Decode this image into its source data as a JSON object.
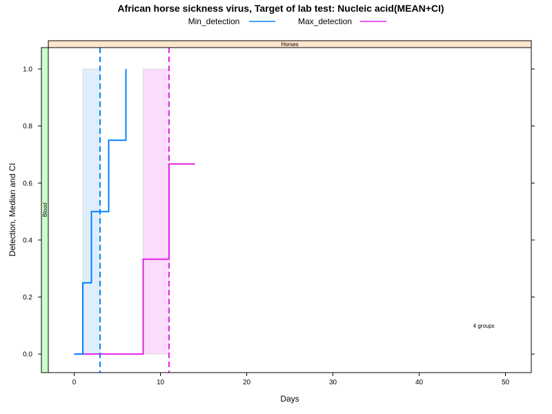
{
  "chart_data": {
    "type": "line",
    "title": "African horse sickness virus, Target of lab test: Nucleic acid(MEAN+CI)",
    "xlabel": "Days",
    "ylabel": "Detection, Median and CI",
    "xlim": [
      -3,
      53
    ],
    "ylim": [
      -0.065,
      1.075
    ],
    "xticks": [
      0,
      10,
      20,
      30,
      40,
      50
    ],
    "yticks": [
      0.0,
      0.2,
      0.4,
      0.6,
      0.8,
      1.0
    ],
    "xtick_labels": [
      "0",
      "10",
      "20",
      "30",
      "40",
      "50"
    ],
    "ytick_labels": [
      "0.0",
      "0.2",
      "0.4",
      "0.6",
      "0.8",
      "1.0"
    ],
    "grid": false,
    "legend_position": "top",
    "strip_top": "Horses",
    "strip_left": "Blood",
    "annotation": "4 groups",
    "annotation_pos": {
      "x": 47.5,
      "y": 0.1
    },
    "series": [
      {
        "name": "Min_detection",
        "color": "#0080ff",
        "fill": "#deeefc",
        "steps": [
          {
            "x": 0,
            "y": 0
          },
          {
            "x": 1,
            "y": 0.25
          },
          {
            "x": 2,
            "y": 0.5
          },
          {
            "x": 4,
            "y": 0.75
          },
          {
            "x": 6,
            "y": 1.0
          }
        ],
        "step_end": 6,
        "ci_band": {
          "x0": 1,
          "x1": 3,
          "y0": 0,
          "y1": 1.0
        },
        "mean_line_x": 3
      },
      {
        "name": "Max_detection",
        "color": "#e51ee5",
        "fill": "#fcdcfc",
        "steps": [
          {
            "x": 0,
            "y": 0
          },
          {
            "x": 8,
            "y": 0.333
          },
          {
            "x": 11,
            "y": 0.667
          }
        ],
        "step_end": 14,
        "ci_band": {
          "x0": 8,
          "x1": 11,
          "y0": 0,
          "y1": 1.0
        },
        "mean_line_x": 11
      }
    ]
  }
}
